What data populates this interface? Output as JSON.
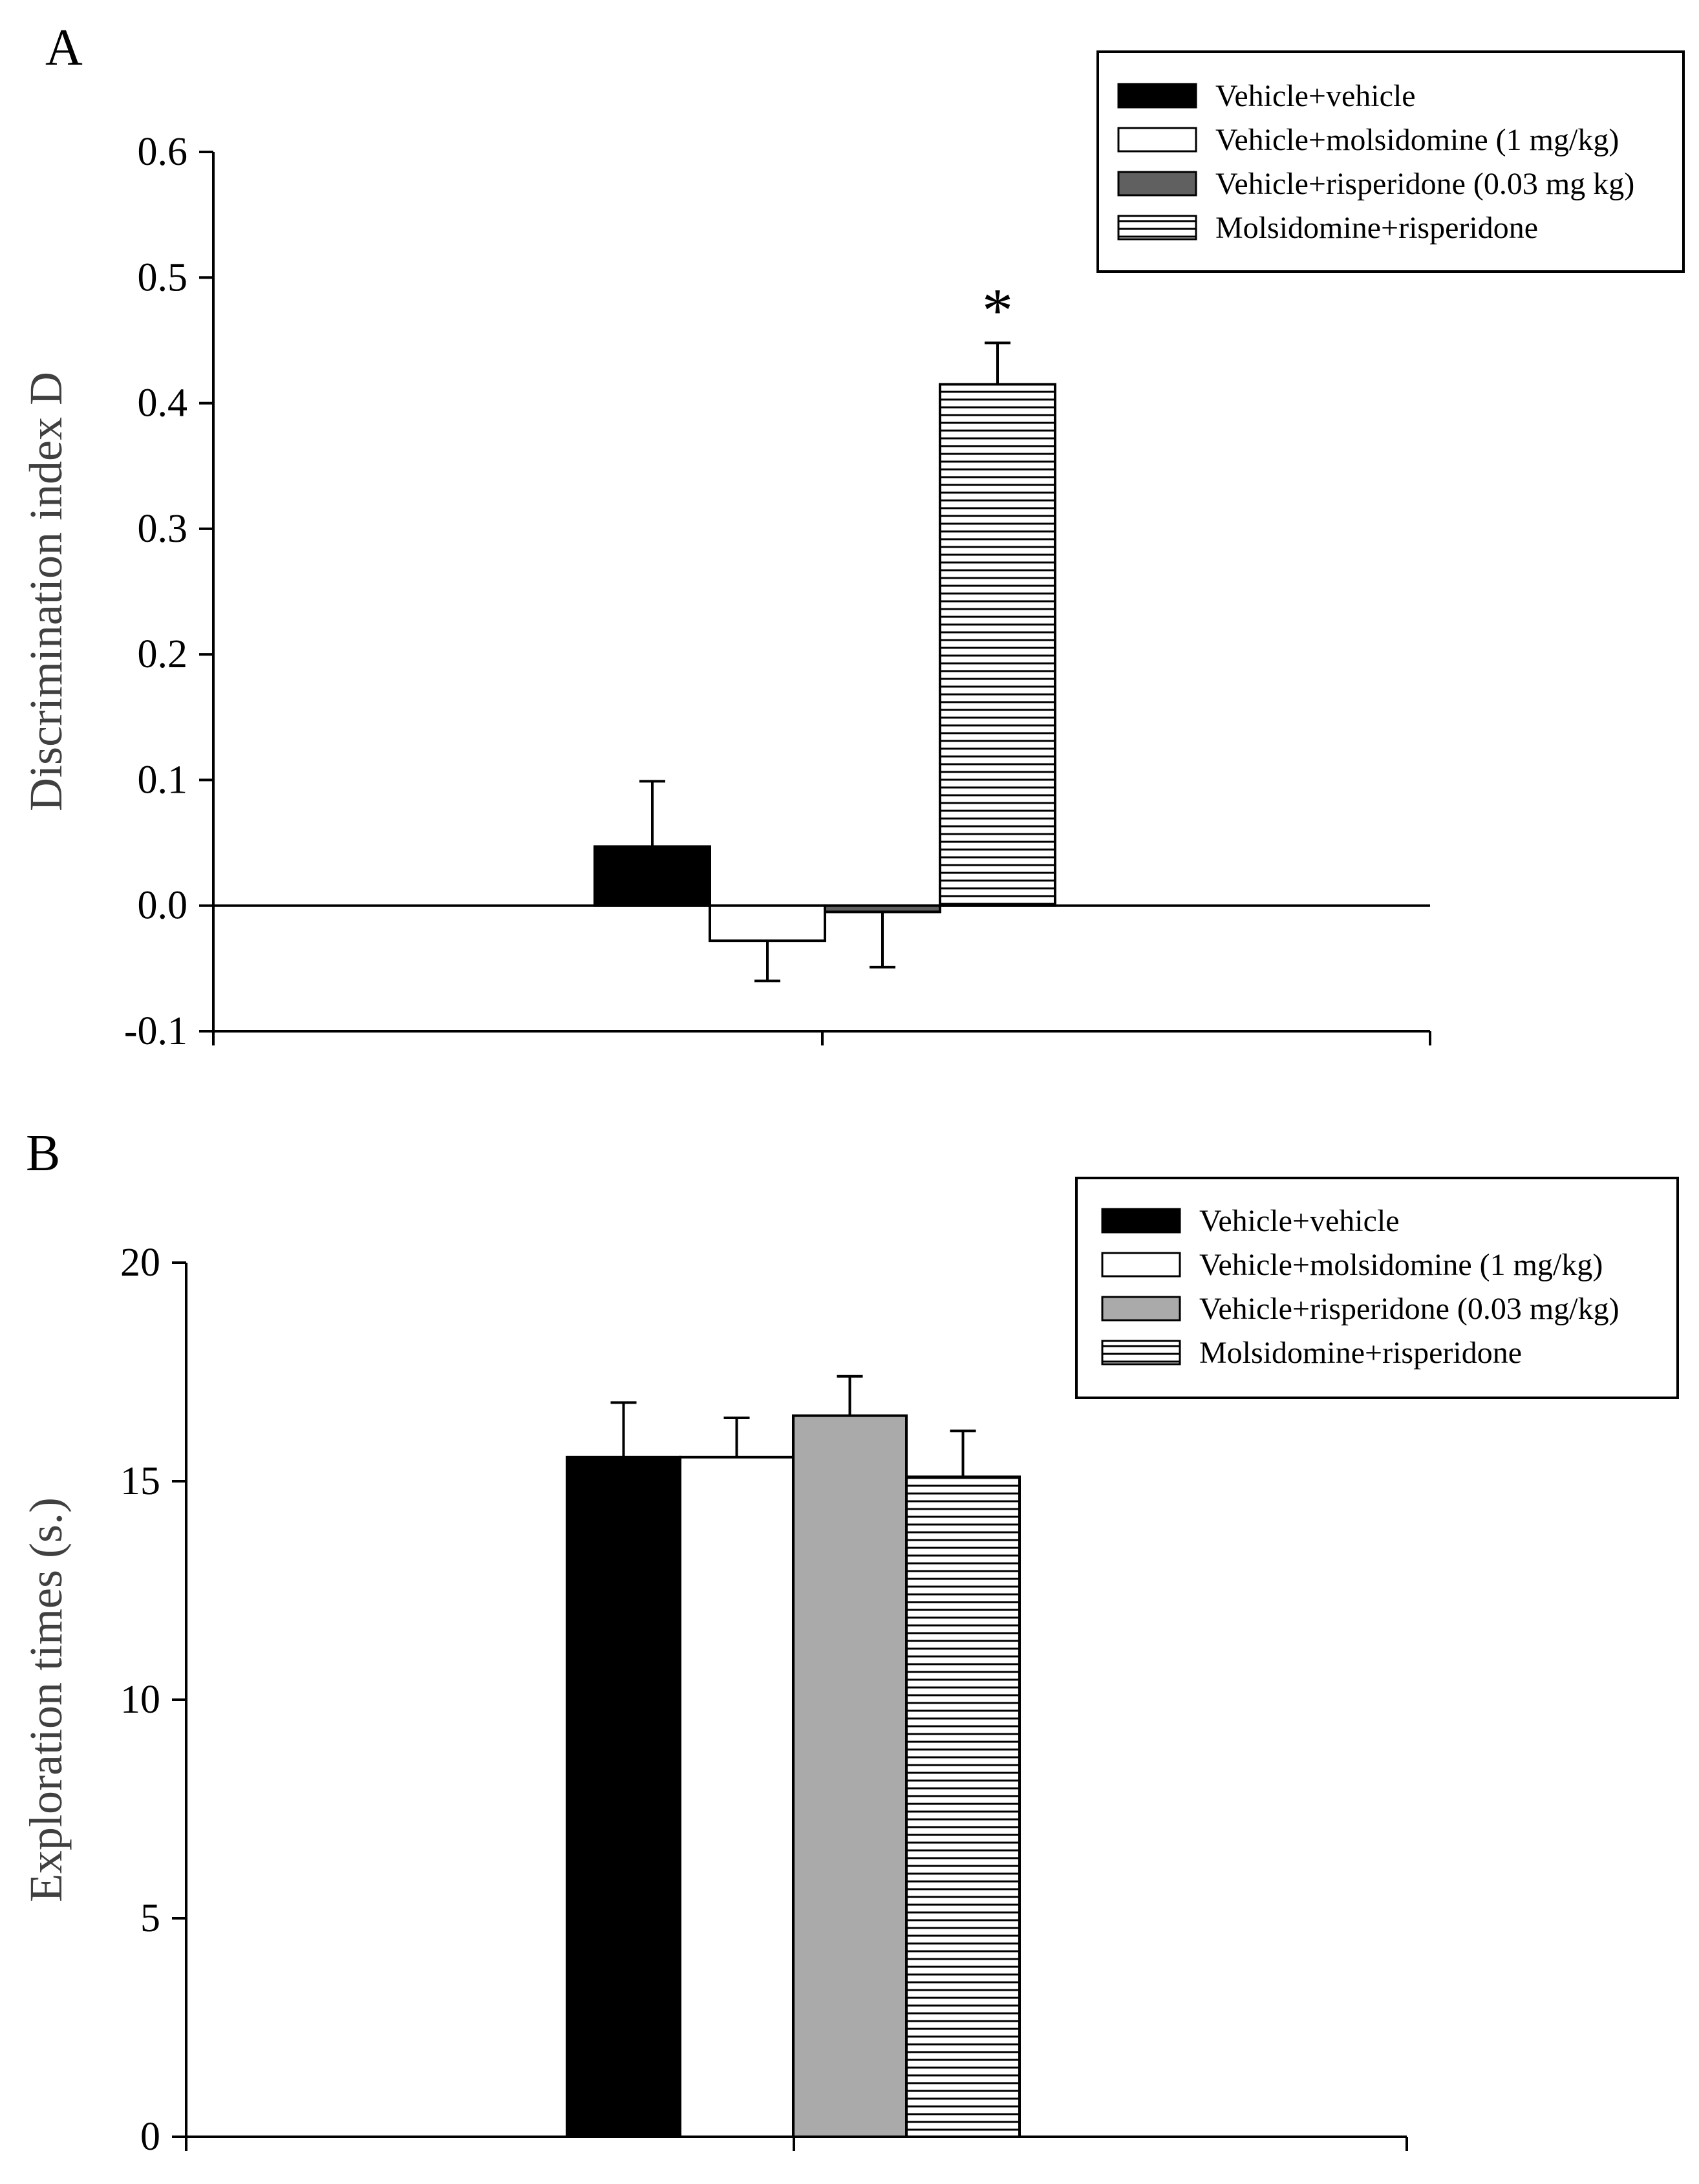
{
  "chart_data": [
    {
      "panel": "A",
      "type": "bar",
      "title": "",
      "ylabel": "Discrimination index D",
      "xlabel": "",
      "ylim": [
        -0.1,
        0.6
      ],
      "yticks": [
        -0.1,
        0.0,
        0.1,
        0.2,
        0.3,
        0.4,
        0.5,
        0.6
      ],
      "ytick_labels": [
        "-0.1",
        "0.0",
        "0.1",
        "0.2",
        "0.3",
        "0.4",
        "0.5",
        "0.6"
      ],
      "legend_position": "top-right",
      "annotation": "*",
      "series": [
        {
          "name": "Vehicle+vehicle",
          "value": 0.047,
          "error": 0.052,
          "fill": "#000000"
        },
        {
          "name": "Vehicle+molsidomine (1 mg/kg)",
          "value": -0.028,
          "error": 0.032,
          "fill": "#ffffff"
        },
        {
          "name": "Vehicle+risperidone (0.03 mg kg)",
          "value": -0.005,
          "error": 0.044,
          "fill": "#606060"
        },
        {
          "name": "Molsidomine+risperidone",
          "value": 0.415,
          "error": 0.033,
          "fill": "hatch"
        }
      ]
    },
    {
      "panel": "B",
      "type": "bar",
      "title": "",
      "ylabel": "Exploration times (s.)",
      "xlabel": "",
      "ylim": [
        0,
        20
      ],
      "yticks": [
        0,
        5,
        10,
        15,
        20
      ],
      "ytick_labels": [
        "0",
        "5",
        "10",
        "15",
        "20"
      ],
      "legend_position": "top-right",
      "series": [
        {
          "name": "Vehicle+vehicle",
          "value": 15.55,
          "error": 1.25,
          "fill": "#000000"
        },
        {
          "name": "Vehicle+molsidomine (1 mg/kg)",
          "value": 15.55,
          "error": 0.9,
          "fill": "#ffffff"
        },
        {
          "name": "Vehicle+risperidone (0.03 mg/kg)",
          "value": 16.5,
          "error": 0.9,
          "fill": "#aaaaaa"
        },
        {
          "name": "Molsidomine+risperidone",
          "value": 15.1,
          "error": 1.05,
          "fill": "hatch"
        }
      ]
    }
  ]
}
